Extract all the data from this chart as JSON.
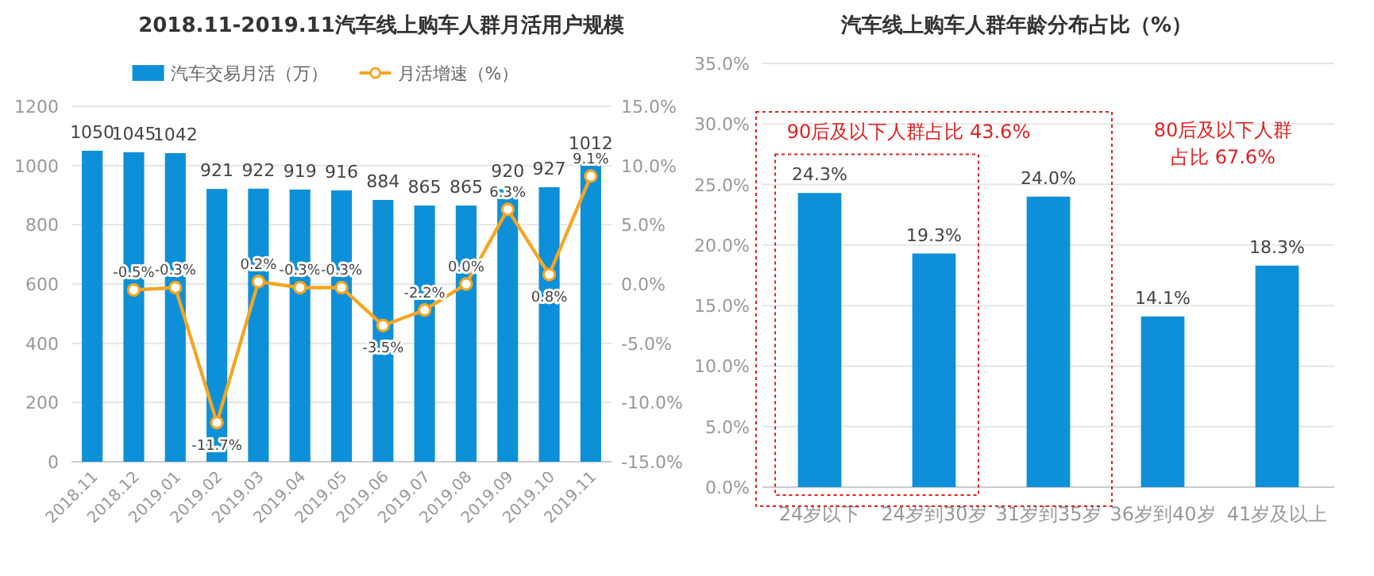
{
  "chart_data": [
    {
      "type": "bar",
      "title": "2018.11-2019.11汽车线上购车人群月活用户规模",
      "categories": [
        "2018.11",
        "2018.12",
        "2019.01",
        "2019.02",
        "2019.03",
        "2019.04",
        "2019.05",
        "2019.06",
        "2019.07",
        "2019.08",
        "2019.09",
        "2019.10",
        "2019.11"
      ],
      "series": [
        {
          "name": "汽车交易月活（万）",
          "color": "#0e90d8",
          "values": [
            1050,
            1045,
            1042,
            921,
            922,
            919,
            916,
            884,
            865,
            865,
            920,
            927,
            1012
          ]
        },
        {
          "name": "月活增速（%）",
          "type": "line",
          "axis": "y2",
          "color": "#f5a623",
          "values": [
            null,
            -0.5,
            -0.3,
            -11.7,
            0.2,
            -0.3,
            -0.3,
            -3.5,
            -2.2,
            0.0,
            6.3,
            0.8,
            9.1
          ],
          "value_labels": [
            null,
            "-0.5%",
            "-0.3%",
            "-11.7%",
            "0.2%",
            "-0.3%",
            "-0.3%",
            "-3.5%",
            "-2.2%",
            "0.0%",
            "6.3%",
            "0.8%",
            "9.1%"
          ]
        }
      ],
      "ylim": [
        0,
        1200
      ],
      "yticks": [
        0,
        200,
        400,
        600,
        800,
        1000,
        1200
      ],
      "y2lim": [
        -15,
        15
      ],
      "y2ticks": [
        {
          "value": -15,
          "label": "-15.0%"
        },
        {
          "value": -10,
          "label": "-10.0%"
        },
        {
          "value": -5,
          "label": "-5.0%"
        },
        {
          "value": 0,
          "label": "0.0%"
        },
        {
          "value": 5,
          "label": "5.0%"
        },
        {
          "value": 10,
          "label": "10.0%"
        },
        {
          "value": 15,
          "label": "15.0%"
        }
      ],
      "grid": "y",
      "legend": "top",
      "marker": "circle",
      "data_labels": true
    },
    {
      "type": "bar",
      "title": "汽车线上购车人群年龄分布占比（%）",
      "categories": [
        "24岁以下",
        "24岁到30岁",
        "31岁到35岁",
        "36岁到40岁",
        "41岁及以上"
      ],
      "values": [
        24.3,
        19.3,
        24.0,
        14.1,
        18.3
      ],
      "color": "#0e90d8",
      "value_labels": [
        "24.3%",
        "19.3%",
        "24.0%",
        "14.1%",
        "18.3%"
      ],
      "ylim": [
        0,
        35
      ],
      "yticks": [
        {
          "value": 0,
          "label": "0.0%"
        },
        {
          "value": 5,
          "label": "5.0%"
        },
        {
          "value": 10,
          "label": "10.0%"
        },
        {
          "value": 15,
          "label": "15.0%"
        },
        {
          "value": 20,
          "label": "20.0%"
        },
        {
          "value": 25,
          "label": "25.0%"
        },
        {
          "value": 30,
          "label": "30.0%"
        },
        {
          "value": 35,
          "label": "35.0%"
        }
      ],
      "grid": "y",
      "annotations": [
        "90后及以下人群占比 43.6%",
        "80后及以下人群占比 67.6%"
      ]
    }
  ]
}
